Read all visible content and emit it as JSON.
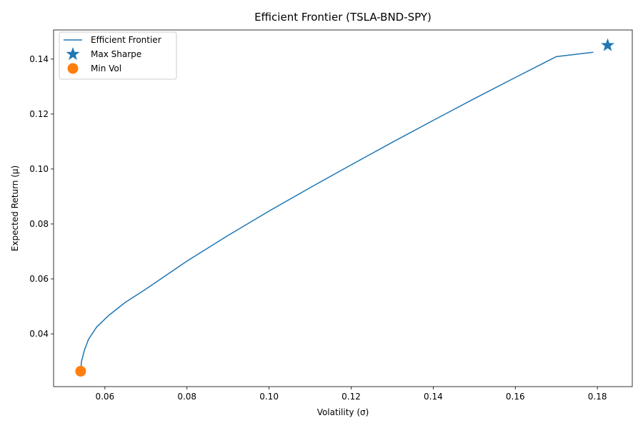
{
  "chart_data": {
    "type": "line",
    "title": "Efficient Frontier (TSLA-BND-SPY)",
    "xlabel": "Volatility (σ)",
    "ylabel": "Expected Return (µ)",
    "xlim": [
      0.0475,
      0.1885
    ],
    "ylim": [
      0.0208,
      0.1506
    ],
    "xticks": [
      0.06,
      0.08,
      0.1,
      0.12,
      0.14,
      0.16,
      0.18
    ],
    "xtick_labels": [
      "0.06",
      "0.08",
      "0.10",
      "0.12",
      "0.14",
      "0.16",
      "0.18"
    ],
    "yticks": [
      0.04,
      0.06,
      0.08,
      0.1,
      0.12,
      0.14
    ],
    "ytick_labels": [
      "0.04",
      "0.06",
      "0.08",
      "0.10",
      "0.12",
      "0.14"
    ],
    "grid": false,
    "legend_position": "upper-left",
    "series": [
      {
        "name": "Efficient Frontier",
        "kind": "line",
        "color": "#1f77b4",
        "x": [
          0.0541,
          0.0543,
          0.055,
          0.056,
          0.058,
          0.061,
          0.065,
          0.07,
          0.08,
          0.09,
          0.1,
          0.11,
          0.12,
          0.13,
          0.14,
          0.15,
          0.16,
          0.17,
          0.179
        ],
        "y": [
          0.0265,
          0.03,
          0.034,
          0.038,
          0.0425,
          0.0468,
          0.0515,
          0.0563,
          0.0665,
          0.0758,
          0.0847,
          0.0932,
          0.1015,
          0.1097,
          0.1177,
          0.1256,
          0.1333,
          0.1409,
          0.1425
        ]
      },
      {
        "name": "Max Sharpe",
        "kind": "marker",
        "marker": "star",
        "color": "#1f77b4",
        "x": [
          0.1825
        ],
        "y": [
          0.145
        ]
      },
      {
        "name": "Min Vol",
        "kind": "marker",
        "marker": "circle",
        "color": "#ff7f0e",
        "x": [
          0.0541
        ],
        "y": [
          0.0264
        ]
      }
    ]
  }
}
